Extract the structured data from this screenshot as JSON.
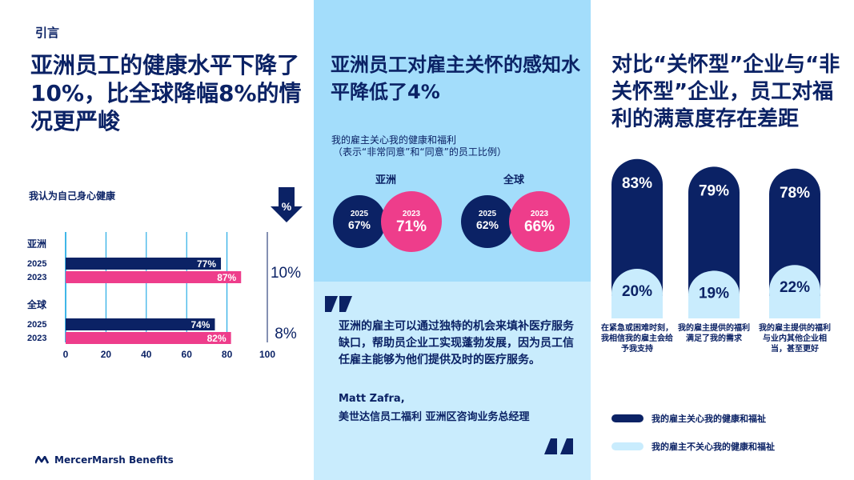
{
  "left": {
    "intro": "引言",
    "title": "亚洲员工的健康水平下降了10%，比全球降幅8%的情况更严峻",
    "subtitle": "我认为自己身心健康",
    "percent_icon_label": "%"
  },
  "middle": {
    "title": "亚洲员工对雇主关怀的感知水平降低了4%",
    "subtitle_line1": "我的雇主关心我的健康和福利",
    "subtitle_line2": "（表示“非常同意”和“同意”的员工比例）",
    "quote": "亚洲的雇主可以通过独特的机会来填补医疗服务缺口，帮助员企业工实现蓬勃发展，因为员工信任雇主能够为他们提供及时的医疗服务。",
    "author": "Matt Zafra,",
    "role": "美世达信员工福利 亚洲区咨询业务总经理"
  },
  "right": {
    "title": "对比“关怀型”企业与“非关怀型”企业，员工对福利的满意度存在差距",
    "legend": [
      "我的雇主关心我的健康和福祉",
      "我的雇主不关心我的健康和福祉"
    ]
  },
  "logo": "MercerMarsh Benefits",
  "colors": {
    "navy": "#0b2265",
    "pink": "#ee3d8b",
    "light_blue": "#a3ddfb",
    "pale_blue": "#c9ecfd",
    "axis_blue": "#009de0"
  },
  "chart_data": [
    {
      "type": "bar",
      "orientation": "horizontal",
      "title": "我认为自己身心健康",
      "groups": [
        {
          "region": "亚洲",
          "years": [
            "2025",
            "2023"
          ],
          "values": [
            77,
            87
          ],
          "labels": [
            "77%",
            "87%"
          ],
          "decline": "10%"
        },
        {
          "region": "全球",
          "years": [
            "2025",
            "2023"
          ],
          "values": [
            74,
            82
          ],
          "labels": [
            "74%",
            "82%"
          ],
          "decline": "8%"
        }
      ],
      "xticks": [
        "0",
        "20",
        "40",
        "60",
        "80",
        "100"
      ],
      "xlim": [
        0,
        100
      ]
    },
    {
      "type": "venn",
      "groups": [
        {
          "region": "亚洲",
          "items": [
            {
              "year": "2025",
              "label": "67%",
              "value": 67
            },
            {
              "year": "2023",
              "label": "71%",
              "value": 71
            }
          ]
        },
        {
          "region": "全球",
          "items": [
            {
              "year": "2025",
              "label": "62%",
              "value": 62
            },
            {
              "year": "2023",
              "label": "66%",
              "value": 66
            }
          ]
        }
      ]
    },
    {
      "type": "bar",
      "orientation": "vertical-pill",
      "categories": [
        "在紧急或困难时刻，我相信我的雇主会给予我支持",
        "我的雇主提供的福利满足了我的需求",
        "我的雇主提供的福利与业内其他企业相当，甚至更好"
      ],
      "series": [
        {
          "name": "我的雇主关心我的健康和福祉",
          "values": [
            83,
            79,
            78
          ],
          "labels": [
            "83%",
            "79%",
            "78%"
          ]
        },
        {
          "name": "我的雇主不关心我的健康和福祉",
          "values": [
            20,
            19,
            22
          ],
          "labels": [
            "20%",
            "19%",
            "22%"
          ]
        }
      ]
    }
  ]
}
